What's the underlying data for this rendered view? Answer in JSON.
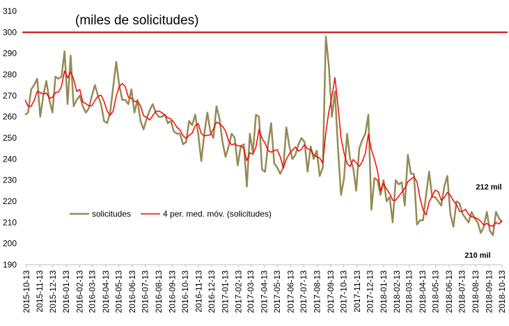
{
  "chart_data": {
    "type": "line",
    "title": "(miles de solicitudes)",
    "x": [
      "2015-10-10",
      "2015-10-17",
      "2015-10-24",
      "2015-10-31",
      "2015-11-07",
      "2015-11-14",
      "2015-11-21",
      "2015-11-28",
      "2015-12-05",
      "2015-12-12",
      "2015-12-19",
      "2015-12-26",
      "2016-01-02",
      "2016-01-09",
      "2016-01-16",
      "2016-01-23",
      "2016-01-30",
      "2016-02-06",
      "2016-02-13",
      "2016-02-20",
      "2016-02-27",
      "2016-03-05",
      "2016-03-12",
      "2016-03-19",
      "2016-03-26",
      "2016-04-02",
      "2016-04-09",
      "2016-04-16",
      "2016-04-23",
      "2016-04-30",
      "2016-05-07",
      "2016-05-14",
      "2016-05-21",
      "2016-05-28",
      "2016-06-04",
      "2016-06-11",
      "2016-06-18",
      "2016-06-25",
      "2016-07-02",
      "2016-07-09",
      "2016-07-16",
      "2016-07-23",
      "2016-07-30",
      "2016-08-06",
      "2016-08-13",
      "2016-08-20",
      "2016-08-27",
      "2016-09-03",
      "2016-09-10",
      "2016-09-17",
      "2016-09-24",
      "2016-10-01",
      "2016-10-08",
      "2016-10-15",
      "2016-10-22",
      "2016-10-29",
      "2016-11-05",
      "2016-11-12",
      "2016-11-19",
      "2016-11-26",
      "2016-12-03",
      "2016-12-10",
      "2016-12-17",
      "2016-12-24",
      "2016-12-31",
      "2017-01-07",
      "2017-01-14",
      "2017-01-21",
      "2017-01-28",
      "2017-02-04",
      "2017-02-11",
      "2017-02-18",
      "2017-02-25",
      "2017-03-04",
      "2017-03-11",
      "2017-03-18",
      "2017-03-25",
      "2017-04-01",
      "2017-04-08",
      "2017-04-15",
      "2017-04-22",
      "2017-04-29",
      "2017-05-06",
      "2017-05-13",
      "2017-05-20",
      "2017-05-27",
      "2017-06-03",
      "2017-06-10",
      "2017-06-17",
      "2017-06-24",
      "2017-07-01",
      "2017-07-08",
      "2017-07-15",
      "2017-07-22",
      "2017-07-29",
      "2017-08-05",
      "2017-08-12",
      "2017-08-19",
      "2017-08-26",
      "2017-09-02",
      "2017-09-09",
      "2017-09-16",
      "2017-09-23",
      "2017-09-30",
      "2017-10-07",
      "2017-10-14",
      "2017-10-21",
      "2017-10-28",
      "2017-11-04",
      "2017-11-11",
      "2017-11-18",
      "2017-11-25",
      "2017-12-02",
      "2017-12-09",
      "2017-12-16",
      "2017-12-23",
      "2017-12-30",
      "2018-01-06",
      "2018-01-13",
      "2018-01-20",
      "2018-01-27",
      "2018-02-03",
      "2018-02-10",
      "2018-02-17",
      "2018-02-24",
      "2018-03-03",
      "2018-03-10",
      "2018-03-17",
      "2018-03-24",
      "2018-03-31",
      "2018-04-07",
      "2018-04-14",
      "2018-04-21",
      "2018-04-28",
      "2018-05-05",
      "2018-05-12",
      "2018-05-19",
      "2018-05-26",
      "2018-06-02",
      "2018-06-09",
      "2018-06-16",
      "2018-06-23",
      "2018-06-30",
      "2018-07-07",
      "2018-07-14",
      "2018-07-21",
      "2018-07-28",
      "2018-08-04",
      "2018-08-11",
      "2018-08-18",
      "2018-08-25",
      "2018-09-01",
      "2018-09-08",
      "2018-09-15",
      "2018-09-22",
      "2018-09-29",
      "2018-10-06",
      "2018-10-13"
    ],
    "series": [
      {
        "name": "solicitudes",
        "color": "#948a54",
        "width": 2.5,
        "values": [
          261,
          262,
          273,
          275,
          278,
          260,
          270,
          277,
          268,
          262,
          279,
          278,
          279,
          291,
          266,
          289,
          265,
          268,
          270,
          265,
          262,
          264,
          270,
          275,
          270,
          266,
          258,
          257,
          262,
          274,
          286,
          275,
          268,
          268,
          266,
          273,
          262,
          268,
          258,
          254,
          259,
          263,
          266,
          262,
          260,
          260,
          261,
          257,
          258,
          253,
          252,
          252,
          247,
          248,
          258,
          256,
          261,
          252,
          239,
          252,
          262,
          253,
          250,
          265,
          259,
          248,
          241,
          246,
          252,
          250,
          237,
          246,
          247,
          227,
          252,
          243,
          261,
          260,
          235,
          234,
          247,
          257,
          238,
          236,
          233,
          236,
          255,
          246,
          240,
          242,
          247,
          250,
          248,
          234,
          246,
          240,
          244,
          232,
          236,
          298,
          284,
          260,
          272,
          245,
          223,
          231,
          252,
          240,
          236,
          225,
          245,
          249,
          252,
          261,
          216,
          231,
          230,
          223,
          230,
          220,
          222,
          210,
          230,
          228,
          229,
          218,
          242,
          233,
          233,
          209,
          211,
          211,
          223,
          234,
          222,
          222,
          220,
          218,
          227,
          232,
          214,
          208,
          220,
          219,
          214,
          212,
          210,
          215,
          212,
          210,
          205,
          208,
          215,
          206,
          204,
          215,
          212,
          210
        ]
      },
      {
        "name": "4 per. med. móv. (solicitudes)",
        "color": "#ff0000",
        "width": 1.5,
        "values": [
          268,
          265,
          265,
          267.75,
          272,
          271.5,
          270.75,
          271.25,
          268.75,
          269.25,
          271.5,
          271.75,
          274.5,
          281.75,
          278.5,
          281.25,
          277.75,
          272,
          273,
          267,
          266.25,
          265.25,
          265.25,
          267.75,
          269.75,
          270.25,
          267.25,
          262.75,
          260.75,
          262.75,
          269.75,
          274.25,
          275.75,
          274.25,
          269.25,
          268.75,
          267.25,
          267.25,
          265.25,
          260.5,
          259.75,
          258.5,
          260.5,
          262.5,
          262.75,
          262,
          260.75,
          259.5,
          259,
          257.25,
          255,
          253.75,
          251,
          249.75,
          251.25,
          252.25,
          255.75,
          256.75,
          252,
          251,
          251.25,
          251.5,
          254.25,
          257.5,
          256.75,
          255.5,
          253.25,
          248.5,
          246.75,
          247.25,
          246.25,
          246.25,
          245,
          239.25,
          243,
          242.25,
          245.75,
          254,
          249.75,
          247.5,
          244,
          243.25,
          244,
          244.5,
          241,
          235.75,
          240,
          242.5,
          244.25,
          245.75,
          243.75,
          244.75,
          246.75,
          244.75,
          244.5,
          242,
          241,
          240.5,
          238,
          252.5,
          262.5,
          269.5,
          278.5,
          265.25,
          250,
          242.75,
          237.75,
          236.5,
          239.75,
          238.25,
          236.5,
          238.75,
          242.75,
          251.75,
          244.5,
          240,
          234.5,
          225,
          228.5,
          225.75,
          223.75,
          220.5,
          220.5,
          222.5,
          224.25,
          226.25,
          229.25,
          230.5,
          231.5,
          229.25,
          221.5,
          216,
          213.5,
          219.75,
          222.5,
          225.25,
          224.5,
          220.5,
          221.75,
          224.25,
          222.75,
          220.25,
          218.5,
          215.25,
          215.25,
          216.25,
          213.75,
          212.75,
          212.25,
          211.75,
          210.5,
          208.75,
          209.5,
          208.5,
          208.25,
          210,
          209.25,
          211
        ]
      }
    ],
    "xlim": [
      "2015-10-10",
      "2018-10-13"
    ],
    "xticks": [
      "2015-10-13",
      "2015-11-13",
      "2015-12-13",
      "2016-01-13",
      "2016-02-13",
      "2016-03-13",
      "2016-04-13",
      "2016-05-13",
      "2016-06-13",
      "2016-07-13",
      "2016-08-13",
      "2016-09-13",
      "2016-10-13",
      "2016-11-13",
      "2016-12-13",
      "2017-01-13",
      "2017-02-13",
      "2017-03-13",
      "2017-04-13",
      "2017-05-13",
      "2017-06-13",
      "2017-07-13",
      "2017-08-13",
      "2017-09-13",
      "2017-10-13",
      "2017-11-13",
      "2017-12-13",
      "2018-01-13",
      "2018-02-13",
      "2018-03-13",
      "2018-04-13",
      "2018-05-13",
      "2018-06-13",
      "2018-07-13",
      "2018-08-13",
      "2018-09-13",
      "2018-10-13"
    ],
    "ylim": [
      190,
      310
    ],
    "yticks": [
      190,
      200,
      210,
      220,
      230,
      240,
      250,
      260,
      270,
      280,
      290,
      300,
      310
    ],
    "reference_line": {
      "value": 300,
      "color": "#c00000"
    },
    "annotations": [
      {
        "text": "212 mil",
        "color": "#c00000"
      },
      {
        "text": "210 mil",
        "color": "#4f6228"
      }
    ],
    "grid": false,
    "legend": "lower left"
  }
}
